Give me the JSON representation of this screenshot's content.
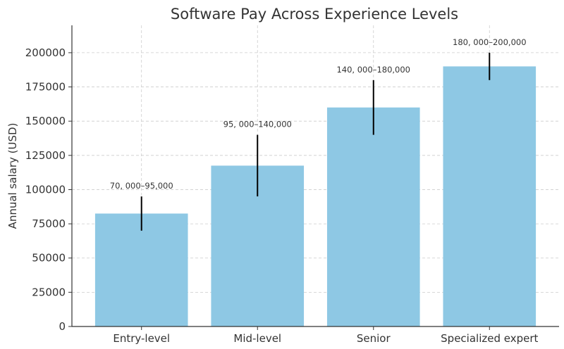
{
  "chart_data": {
    "type": "bar",
    "title": "Software Pay Across Experience Levels",
    "xlabel": "",
    "ylabel": "Annual salary (USD)",
    "categories": [
      "Entry-level",
      "Mid-level",
      "Senior",
      "Specialized expert"
    ],
    "values": [
      82500,
      117500,
      160000,
      190000
    ],
    "error_ranges": [
      [
        70000,
        95000
      ],
      [
        95000,
        140000
      ],
      [
        140000,
        180000
      ],
      [
        180000,
        200000
      ]
    ],
    "annotations": [
      "70, 000–95,000",
      "95, 000–140,000",
      "140, 000–180,000",
      "180, 000–200,000"
    ],
    "ylim": [
      0,
      220000
    ],
    "yticks": [
      0,
      25000,
      50000,
      75000,
      100000,
      125000,
      150000,
      175000,
      200000
    ],
    "grid": true,
    "bar_color": "#8ec8e4",
    "error_color": "#000000"
  }
}
